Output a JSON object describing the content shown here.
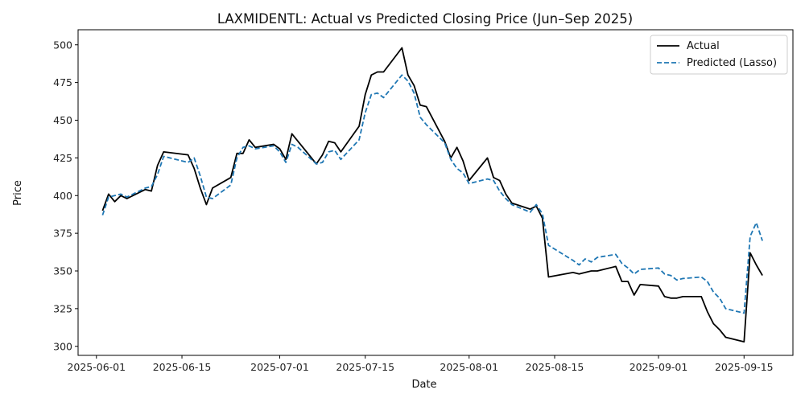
{
  "chart_data": {
    "type": "line",
    "title": "LAXMIDENTL: Actual vs Predicted Closing Price (Jun–Sep 2025)",
    "xlabel": "Date",
    "ylabel": "Price",
    "xlim": [
      "2025-05-29",
      "2025-09-23"
    ],
    "ylim": [
      294,
      510
    ],
    "x_ticks": [
      "2025-06-01",
      "2025-06-15",
      "2025-07-01",
      "2025-07-15",
      "2025-08-01",
      "2025-08-15",
      "2025-09-01",
      "2025-09-15"
    ],
    "y_ticks": [
      300,
      325,
      350,
      375,
      400,
      425,
      450,
      475,
      500
    ],
    "grid": false,
    "legend_position": "top-right",
    "x": [
      "2025-06-02",
      "2025-06-03",
      "2025-06-04",
      "2025-06-05",
      "2025-06-06",
      "2025-06-09",
      "2025-06-10",
      "2025-06-11",
      "2025-06-12",
      "2025-06-16",
      "2025-06-17",
      "2025-06-18",
      "2025-06-19",
      "2025-06-20",
      "2025-06-23",
      "2025-06-24",
      "2025-06-25",
      "2025-06-26",
      "2025-06-27",
      "2025-06-30",
      "2025-07-01",
      "2025-07-02",
      "2025-07-03",
      "2025-07-04",
      "2025-07-07",
      "2025-07-08",
      "2025-07-09",
      "2025-07-10",
      "2025-07-11",
      "2025-07-14",
      "2025-07-15",
      "2025-07-16",
      "2025-07-17",
      "2025-07-18",
      "2025-07-21",
      "2025-07-22",
      "2025-07-23",
      "2025-07-24",
      "2025-07-25",
      "2025-07-28",
      "2025-07-29",
      "2025-07-30",
      "2025-07-31",
      "2025-08-01",
      "2025-08-04",
      "2025-08-05",
      "2025-08-06",
      "2025-08-07",
      "2025-08-08",
      "2025-08-11",
      "2025-08-12",
      "2025-08-13",
      "2025-08-14",
      "2025-08-18",
      "2025-08-19",
      "2025-08-20",
      "2025-08-21",
      "2025-08-22",
      "2025-08-25",
      "2025-08-26",
      "2025-08-27",
      "2025-08-28",
      "2025-08-29",
      "2025-09-01",
      "2025-09-02",
      "2025-09-03",
      "2025-09-04",
      "2025-09-05",
      "2025-09-08",
      "2025-09-09",
      "2025-09-10",
      "2025-09-11",
      "2025-09-12",
      "2025-09-15",
      "2025-09-16",
      "2025-09-17",
      "2025-09-18"
    ],
    "series": [
      {
        "name": "Actual",
        "color": "#000000",
        "style": "solid",
        "values": [
          390,
          401,
          396,
          400,
          398,
          404,
          403,
          420,
          429,
          427,
          418,
          405,
          394,
          405,
          412,
          428,
          428,
          437,
          432,
          434,
          431,
          424,
          441,
          436,
          421,
          427,
          436,
          435,
          429,
          446,
          467,
          480,
          482,
          482,
          498,
          480,
          473,
          460,
          459,
          436,
          425,
          432,
          423,
          410,
          425,
          412,
          410,
          401,
          395,
          391,
          393,
          385,
          346,
          349,
          348,
          349,
          350,
          350,
          353,
          343,
          343,
          334,
          341,
          340,
          333,
          332,
          332,
          333,
          333,
          323,
          315,
          311,
          306,
          303,
          362,
          354,
          347
        ]
      },
      {
        "name": "Predicted (Lasso)",
        "color": "#1f77b4",
        "style": "dashed",
        "values": [
          387,
          399,
          400,
          401,
          399,
          405,
          406,
          414,
          426,
          422,
          425,
          413,
          399,
          398,
          407,
          425,
          432,
          433,
          431,
          433,
          429,
          422,
          434,
          432,
          421,
          422,
          429,
          430,
          424,
          437,
          455,
          467,
          468,
          465,
          480,
          476,
          468,
          452,
          447,
          435,
          424,
          418,
          415,
          408,
          411,
          410,
          403,
          398,
          394,
          389,
          394,
          388,
          367,
          357,
          354,
          358,
          356,
          359,
          361,
          355,
          352,
          348,
          351,
          352,
          348,
          347,
          344,
          345,
          346,
          343,
          336,
          332,
          325,
          322,
          373,
          382,
          370
        ]
      }
    ]
  }
}
